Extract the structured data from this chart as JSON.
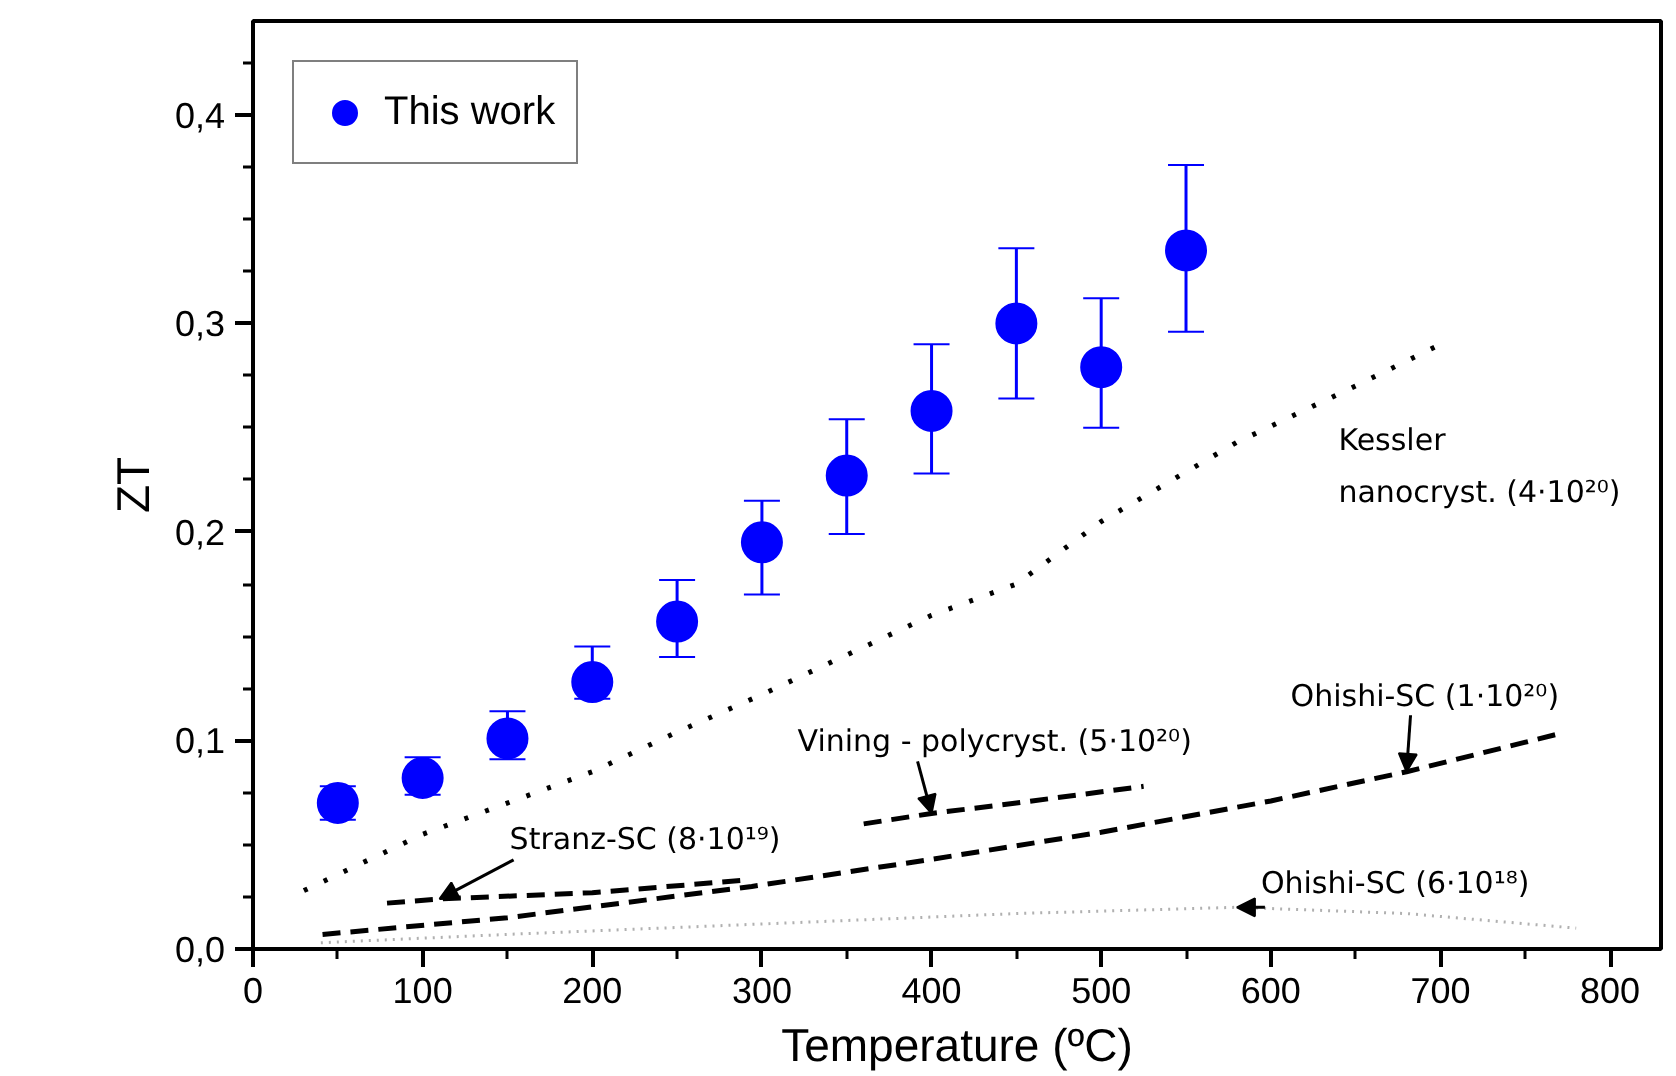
{
  "chart_data": {
    "type": "scatter",
    "xlabel": "Temperature (ºC)",
    "ylabel": "ZT",
    "xlim": [
      0,
      830
    ],
    "ylim": [
      0,
      0.445
    ],
    "xticks": [
      0,
      100,
      200,
      300,
      400,
      500,
      600,
      700,
      800
    ],
    "yticks": [
      {
        "value": 0,
        "label": "0,0"
      },
      {
        "value": 0.1,
        "label": "0,1"
      },
      {
        "value": 0.2,
        "label": "0,2"
      },
      {
        "value": 0.3,
        "label": "0,3"
      },
      {
        "value": 0.4,
        "label": "0,4"
      }
    ],
    "legend": "top left",
    "grid": false,
    "series": [
      {
        "name": "This work",
        "color": "#0000ff",
        "marker": "circle",
        "x": [
          50,
          100,
          150,
          200,
          250,
          300,
          350,
          400,
          450,
          500,
          550
        ],
        "values": [
          0.07,
          0.082,
          0.101,
          0.128,
          0.157,
          0.195,
          0.227,
          0.258,
          0.3,
          0.279,
          0.335
        ],
        "errors": [
          [
            0.062,
            0.078
          ],
          [
            0.074,
            0.092
          ],
          [
            0.091,
            0.114
          ],
          [
            0.12,
            0.145
          ],
          [
            0.14,
            0.177
          ],
          [
            0.17,
            0.215
          ],
          [
            0.199,
            0.254
          ],
          [
            0.228,
            0.29
          ],
          [
            0.264,
            0.336
          ],
          [
            0.25,
            0.312
          ],
          [
            0.296,
            0.376
          ]
        ]
      },
      {
        "name": "Kessler nanocryst. (4·10²⁰)",
        "type": "line",
        "color": "#000000",
        "line_style": "dotted",
        "marker": "none",
        "x": [
          30,
          100,
          200,
          250,
          300,
          400,
          450,
          500,
          580,
          650,
          700
        ],
        "values": [
          0.028,
          0.055,
          0.085,
          0.104,
          0.122,
          0.16,
          0.175,
          0.205,
          0.243,
          0.27,
          0.29
        ]
      },
      {
        "name": "Stranz-SC (8·10¹⁹)",
        "type": "line",
        "color": "#000000",
        "line_style": "dashed",
        "marker": "none",
        "x": [
          79,
          110,
          200,
          290
        ],
        "values": [
          0.022,
          0.024,
          0.027,
          0.033
        ]
      },
      {
        "name": "Vining - polycryst. (5·10²⁰)",
        "type": "line",
        "color": "#000000",
        "line_style": "dashed",
        "marker": "none",
        "x": [
          360,
          400,
          450,
          525
        ],
        "values": [
          0.06,
          0.065,
          0.07,
          0.078
        ]
      },
      {
        "name": "Ohishi-SC (1·10²⁰)",
        "type": "line",
        "color": "#000000",
        "line_style": "dashed",
        "marker": "none",
        "x": [
          41,
          150,
          294,
          400,
          500,
          600,
          680,
          769
        ],
        "values": [
          0.007,
          0.015,
          0.03,
          0.043,
          0.056,
          0.071,
          0.085,
          0.103
        ]
      },
      {
        "name": "Ohishi-SC (6·10¹⁸)",
        "type": "line",
        "color": "#b0b0b0",
        "line_style": "dotted",
        "marker": "none",
        "x": [
          40,
          150,
          300,
          450,
          580,
          680,
          780
        ],
        "values": [
          0.003,
          0.007,
          0.012,
          0.017,
          0.02,
          0.017,
          0.01
        ]
      }
    ]
  }
}
